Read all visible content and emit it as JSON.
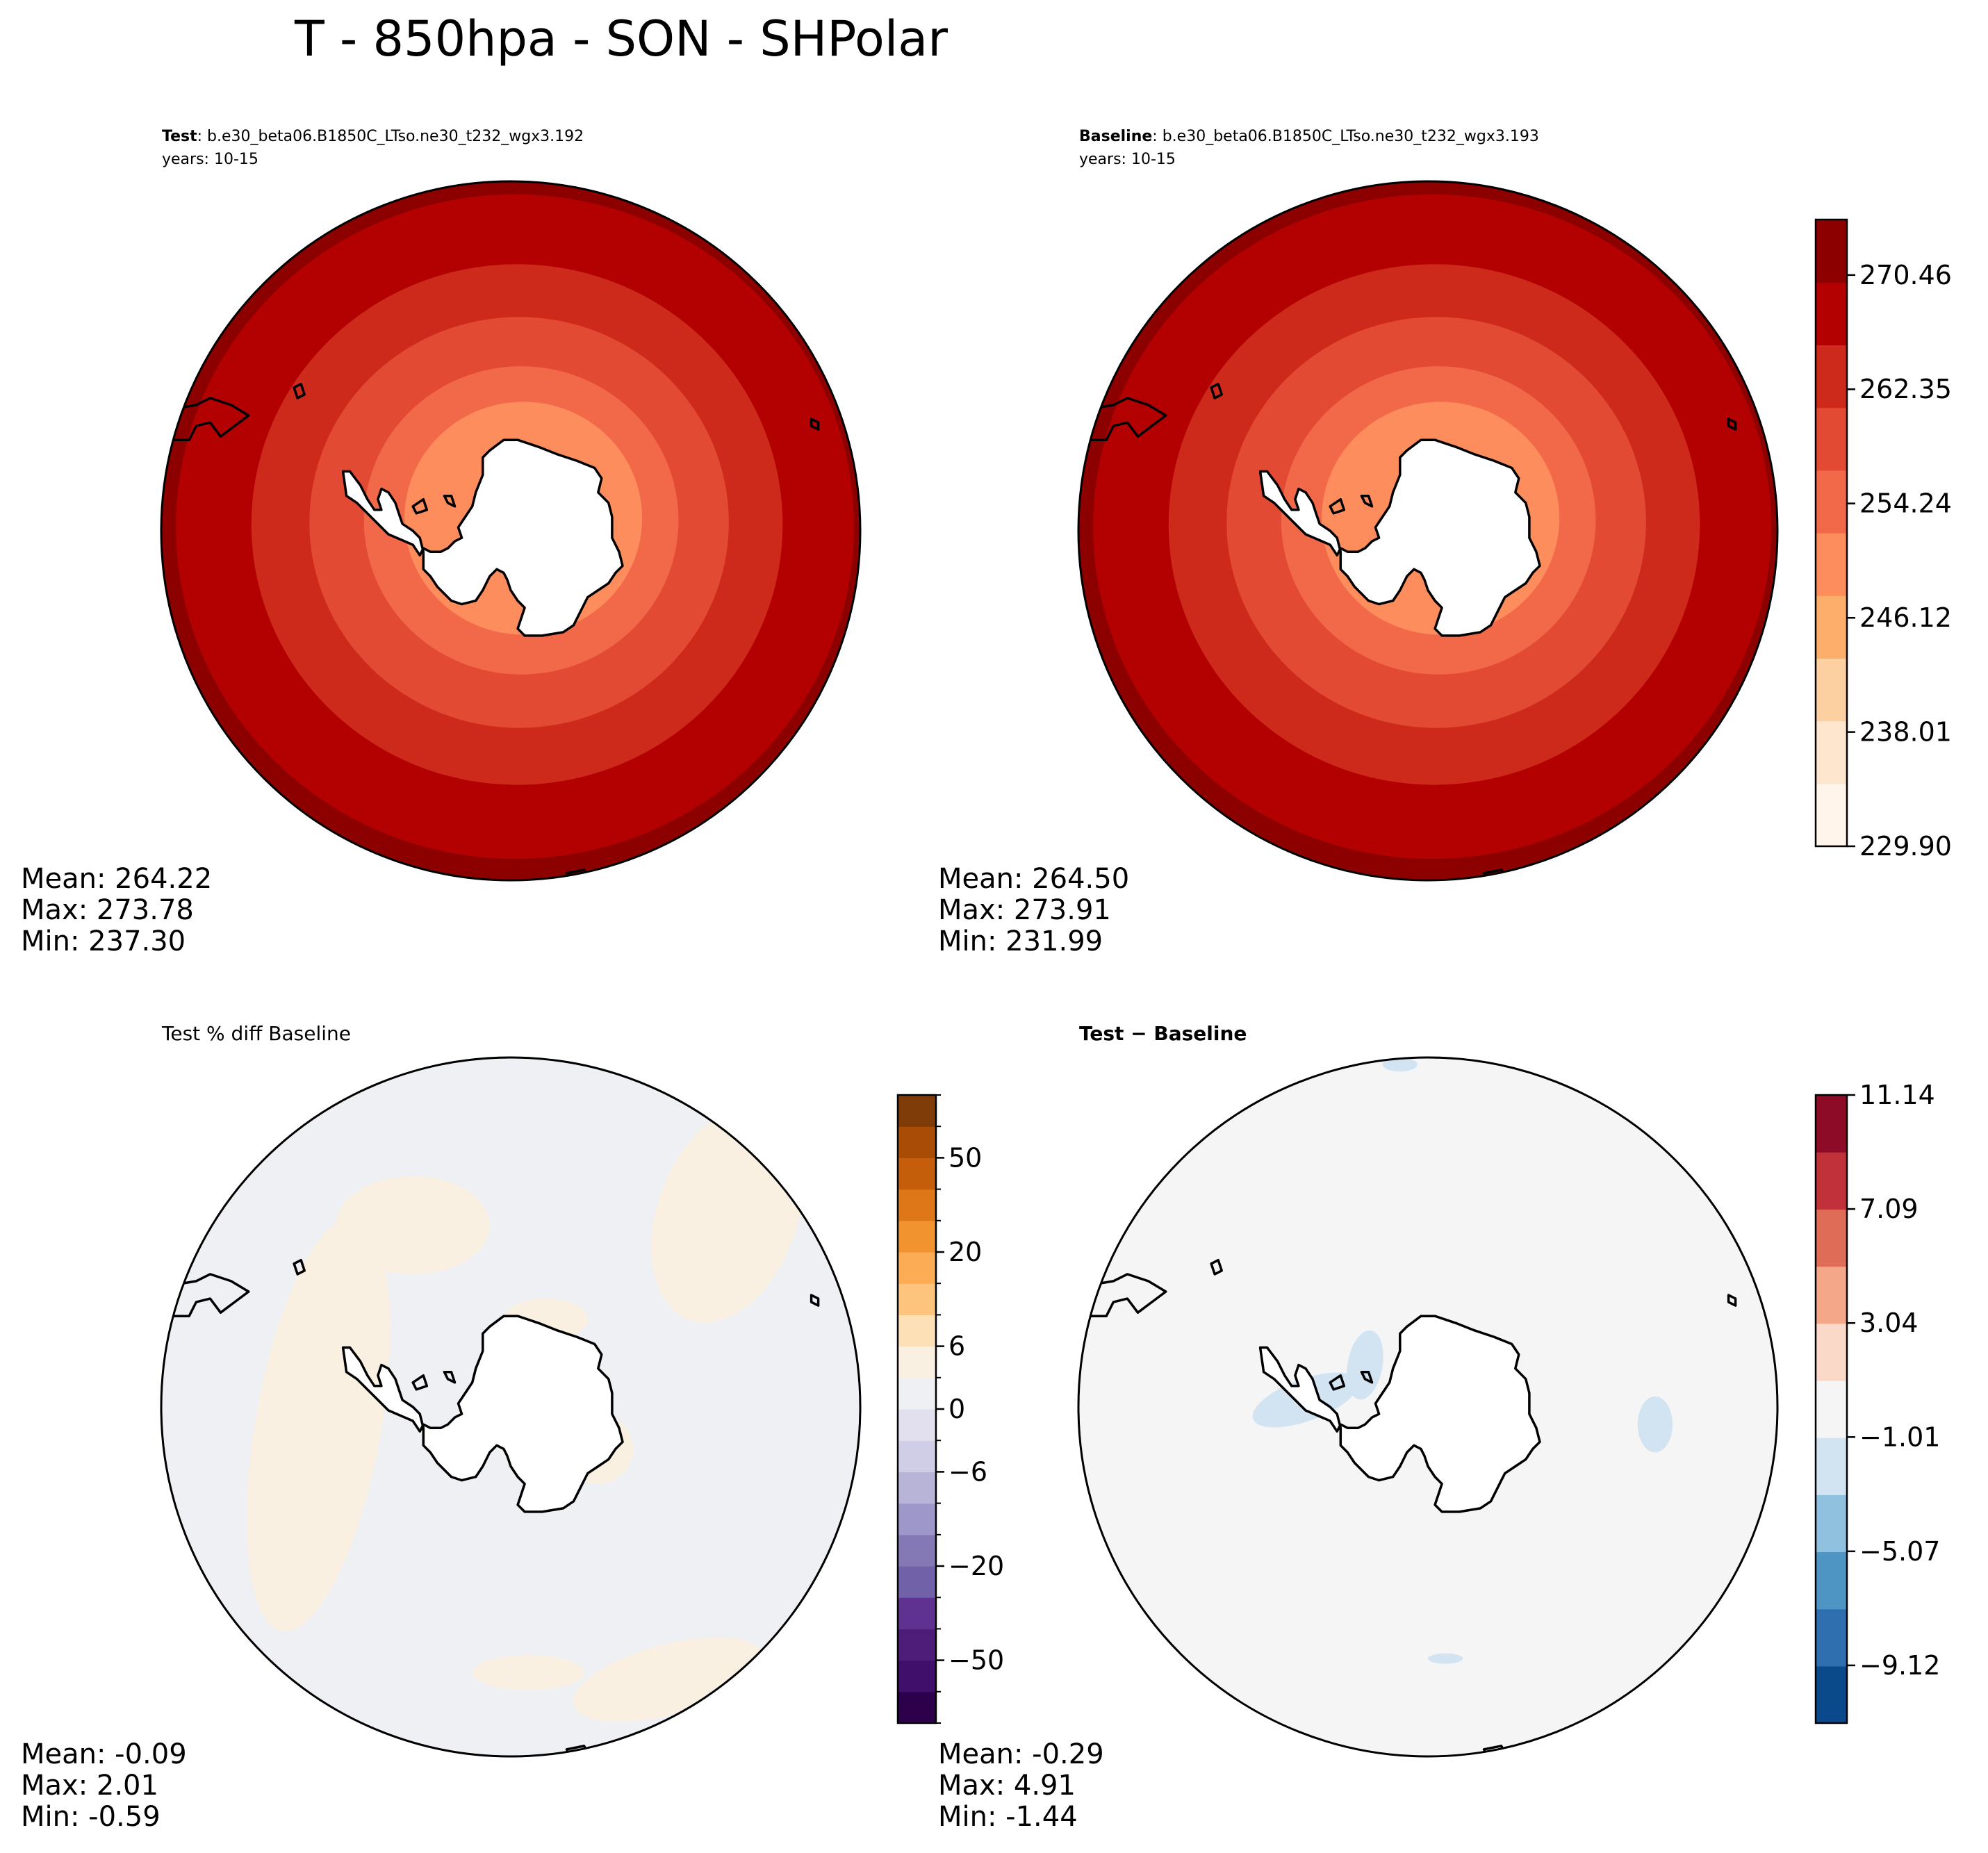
{
  "figure_title": "T - 850hpa - SON - SHPolar",
  "colors": {
    "land_mask": "#ffffff",
    "coast": "#000000",
    "reds": [
      "#fff5eb",
      "#fee6ce",
      "#fdd0a2",
      "#fdae6b",
      "#fd8d5c",
      "#f2694a",
      "#e24a33",
      "#cd2a1c",
      "#b30000",
      "#8c0000"
    ],
    "purple_orange": [
      "#2d004b",
      "#3f0f6b",
      "#4e1d7a",
      "#5f3291",
      "#7161a8",
      "#8579b5",
      "#9e97c9",
      "#b8b4d8",
      "#d0cde6",
      "#e2e0ef",
      "#eef0f4",
      "#f9f0e2",
      "#fde0b5",
      "#fdc47e",
      "#fbac55",
      "#f1932f",
      "#dd7717",
      "#c45e0a",
      "#a84c06",
      "#7f3b08"
    ],
    "rdbu": [
      "#0a4a8a",
      "#2f6faf",
      "#4e95c4",
      "#90c1df",
      "#d2e4f1",
      "#f5f5f5",
      "#fbd9c8",
      "#f4a789",
      "#de6c56",
      "#c1313a",
      "#8d0b27"
    ]
  },
  "chart_data": [
    {
      "type": "heatmap",
      "panel": "test",
      "title_bold": "Test",
      "title_rest": ": b.e30_beta06.B1850C_LTso.ne30_t232_wgx3.192",
      "years": "years: 10-15",
      "projection": "south-polar-stereographic",
      "field": "T at 850hPa, SON, Southern Hemisphere polar",
      "contour_bands": [
        {
          "min": 249.0,
          "level": 4
        },
        {
          "min": 252.0,
          "level": 5
        },
        {
          "min": 258.0,
          "level": 6
        },
        {
          "min": 262.5,
          "level": 7
        },
        {
          "min": 266.5,
          "level": 8
        },
        {
          "min": 270.5,
          "level": 9
        }
      ],
      "stats": {
        "mean": "Mean: 264.22",
        "max": "Max: 273.78",
        "min": "Min: 237.30"
      }
    },
    {
      "type": "heatmap",
      "panel": "baseline",
      "title_bold": "Baseline",
      "title_rest": ": b.e30_beta06.B1850C_LTso.ne30_t232_wgx3.193",
      "years": "years: 10-15",
      "projection": "south-polar-stereographic",
      "contour_bands": [
        {
          "min": 249.0,
          "level": 4
        },
        {
          "min": 252.0,
          "level": 5
        },
        {
          "min": 258.0,
          "level": 6
        },
        {
          "min": 262.5,
          "level": 7
        },
        {
          "min": 266.5,
          "level": 8
        },
        {
          "min": 270.5,
          "level": 9
        }
      ],
      "stats": {
        "mean": "Mean: 264.50",
        "max": "Max: 273.91",
        "min": "Min: 231.99"
      },
      "colorbar": {
        "range": [
          229.9,
          274.4
        ],
        "ticks": [
          229.9,
          238.01,
          246.12,
          254.24,
          262.35,
          270.46
        ],
        "tick_labels": [
          "229.90",
          "238.01",
          "246.12",
          "254.24",
          "262.35",
          "270.46"
        ],
        "n_levels": 10
      }
    },
    {
      "type": "heatmap",
      "panel": "percent_diff",
      "title": "Test % diff Baseline",
      "projection": "south-polar-stereographic",
      "field_description": "near zero everywhere; small positive patches",
      "stats": {
        "mean": "Mean: -0.09",
        "max": "Max:  2.01",
        "min": "Min: -0.59"
      },
      "colorbar": {
        "levels": [
          -100,
          -75,
          -50,
          -40,
          -30,
          -20,
          -15,
          -10,
          -6,
          -3,
          0,
          3,
          6,
          10,
          15,
          20,
          30,
          40,
          50,
          75,
          100
        ],
        "tick_values": [
          -50,
          -20,
          -6,
          0,
          6,
          20,
          50
        ],
        "tick_labels": [
          "−50",
          "−20",
          "−6",
          "0",
          "6",
          "20",
          "50"
        ]
      }
    },
    {
      "type": "heatmap",
      "panel": "difference",
      "title_bold": "Test − Baseline",
      "projection": "south-polar-stereographic",
      "field_description": "near zero; weak negative patches",
      "stats": {
        "mean": "Mean: -0.29",
        "max": "Max:  4.91",
        "min": "Min: -1.44"
      },
      "colorbar": {
        "range": [
          -11.17,
          11.14
        ],
        "ticks": [
          -9.12,
          -5.07,
          -1.01,
          3.04,
          7.09,
          11.14
        ],
        "tick_labels": [
          "−9.12",
          "−5.07",
          "−1.01",
          "3.04",
          "7.09",
          "11.14"
        ],
        "n_levels": 11
      }
    }
  ]
}
